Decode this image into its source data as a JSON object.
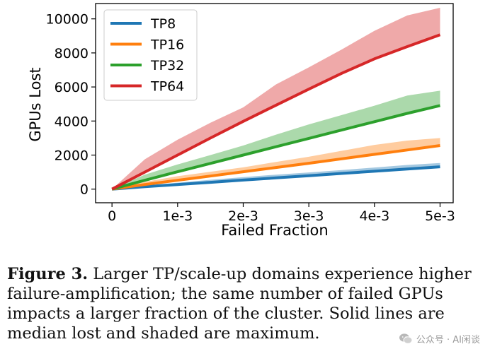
{
  "chart_data": {
    "type": "line",
    "xlabel": "Failed Fraction",
    "ylabel": "GPUs Lost",
    "x": [
      0,
      0.0005,
      0.001,
      0.0015,
      0.002,
      0.0025,
      0.003,
      0.0035,
      0.004,
      0.0045,
      0.005
    ],
    "x_ticks": [
      0,
      0.001,
      0.002,
      0.003,
      0.004,
      0.005
    ],
    "x_tick_labels": [
      "0",
      "1e-3",
      "2e-3",
      "3e-3",
      "4e-3",
      "5e-3"
    ],
    "xlim": [
      -0.00025,
      0.0052
    ],
    "y_ticks": [
      0,
      2000,
      4000,
      6000,
      8000,
      10000
    ],
    "y_tick_labels": [
      "0",
      "2000",
      "4000",
      "6000",
      "8000",
      "10000"
    ],
    "ylim": [
      -800,
      10900
    ],
    "grid": false,
    "legend_position": "top-left",
    "series": [
      {
        "name": "TP8",
        "color": "#1f77b4",
        "median": [
          0,
          140,
          270,
          400,
          530,
          660,
          790,
          920,
          1050,
          1180,
          1310
        ],
        "max": [
          0,
          200,
          380,
          550,
          700,
          850,
          980,
          1120,
          1270,
          1420,
          1530
        ]
      },
      {
        "name": "TP16",
        "color": "#ff7f0e",
        "median": [
          0,
          270,
          520,
          770,
          1020,
          1270,
          1520,
          1780,
          2040,
          2300,
          2560
        ],
        "max": [
          0,
          430,
          760,
          1020,
          1280,
          1600,
          1900,
          2250,
          2600,
          2850,
          3000
        ]
      },
      {
        "name": "TP32",
        "color": "#2ca02c",
        "median": [
          0,
          520,
          1020,
          1510,
          2000,
          2490,
          2980,
          3470,
          3960,
          4450,
          4910
        ],
        "max": [
          0,
          850,
          1450,
          2000,
          2560,
          3200,
          3800,
          4350,
          4900,
          5500,
          5780
        ]
      },
      {
        "name": "TP64",
        "color": "#d62728",
        "median": [
          0,
          1000,
          2000,
          3000,
          3980,
          4930,
          5870,
          6800,
          7650,
          8370,
          9060
        ],
        "max": [
          0,
          1750,
          2900,
          3900,
          4800,
          6150,
          7150,
          8200,
          9300,
          10200,
          10650
        ]
      }
    ]
  },
  "caption": {
    "label": "Figure 3.",
    "text": "Larger TP/scale-up domains experience higher failure-amplification; the same number of failed GPUs impacts a larger fraction of the cluster. Solid lines are median lost and shaded are maximum."
  },
  "watermark": {
    "text": "公众号 · AI闲谈",
    "icon": "wechat-icon"
  }
}
